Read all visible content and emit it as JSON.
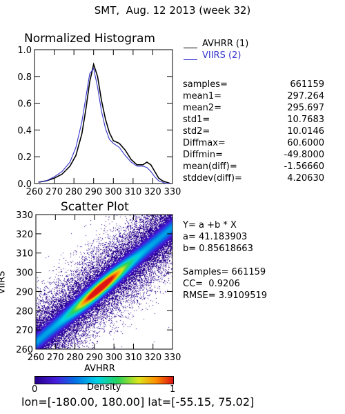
{
  "page_title": "SMT,  Aug. 12 2013 (week 32)",
  "colors": {
    "avhrr": "#000000",
    "viirs": "#3333cc"
  },
  "chart_data": [
    {
      "type": "line",
      "title": "Normalized Histogram",
      "xlabel": "",
      "ylabel": "",
      "xlim": [
        260,
        330
      ],
      "ylim": [
        0.0,
        1.0
      ],
      "xticks": [
        "260",
        "270",
        "280",
        "290",
        "300",
        "310",
        "320",
        "330"
      ],
      "yticks": [
        "0.0",
        "0.2",
        "0.4",
        "0.6",
        "0.8",
        "1.0"
      ],
      "legend": {
        "position": "right",
        "entries": [
          "AVHRR (1)",
          "VIIRS (2)"
        ]
      },
      "series": [
        {
          "name": "AVHRR (1)",
          "color": "#000000",
          "x": [
            262,
            266,
            270,
            274,
            278,
            281,
            284,
            286,
            288,
            290,
            292,
            294,
            296,
            298,
            300,
            303,
            306,
            309,
            312,
            315,
            317,
            319,
            321,
            323,
            325,
            327,
            329
          ],
          "y": [
            0.01,
            0.02,
            0.04,
            0.07,
            0.13,
            0.21,
            0.37,
            0.55,
            0.76,
            0.89,
            0.8,
            0.62,
            0.48,
            0.38,
            0.32,
            0.3,
            0.25,
            0.18,
            0.14,
            0.14,
            0.16,
            0.14,
            0.09,
            0.04,
            0.02,
            0.01,
            0.0
          ]
        },
        {
          "name": "VIIRS (2)",
          "color": "#3333cc",
          "x": [
            262,
            266,
            270,
            274,
            278,
            281,
            284,
            286,
            288,
            290,
            292,
            294,
            296,
            298,
            300,
            303,
            306,
            309,
            312,
            315,
            317,
            319,
            321,
            323,
            325,
            327,
            329
          ],
          "y": [
            0.01,
            0.02,
            0.05,
            0.09,
            0.16,
            0.27,
            0.46,
            0.64,
            0.82,
            0.86,
            0.72,
            0.54,
            0.41,
            0.33,
            0.3,
            0.27,
            0.21,
            0.16,
            0.13,
            0.13,
            0.12,
            0.09,
            0.05,
            0.02,
            0.01,
            0.0,
            0.0
          ]
        }
      ],
      "stats": [
        {
          "label": "samples=",
          "value": "661159"
        },
        {
          "label": "mean1=",
          "value": "297.264"
        },
        {
          "label": "mean2=",
          "value": "295.697"
        },
        {
          "label": "std1=",
          "value": "10.7683"
        },
        {
          "label": "std2=",
          "value": "10.0146"
        },
        {
          "label": "Diffmax=",
          "value": "60.6000"
        },
        {
          "label": "Diffmin=",
          "value": "-49.8000"
        },
        {
          "label": "mean(diff)=",
          "value": "-1.56660"
        },
        {
          "label": "stddev(diff)=",
          "value": "4.20630"
        }
      ]
    },
    {
      "type": "scatter",
      "title": "Scatter Plot",
      "xlabel": "AVHRR",
      "ylabel": "VIIRS",
      "xlim": [
        260,
        330
      ],
      "ylim": [
        260,
        330
      ],
      "xticks": [
        "260",
        "270",
        "280",
        "290",
        "300",
        "310",
        "320",
        "330"
      ],
      "yticks": [
        "260",
        "270",
        "280",
        "290",
        "300",
        "310",
        "320",
        "330"
      ],
      "regression": {
        "a": 41.183903,
        "b": 0.85618663
      },
      "fit_text": [
        "Y= a +b * X",
        "a= 41.183903",
        "b= 0.85618663",
        "",
        "Samples= 661159",
        "CC=  0.9206",
        "RMSE= 3.9109519"
      ],
      "colorbar": {
        "label": "Density",
        "min": "0",
        "max": "1"
      }
    }
  ],
  "footer": "lon=[-180.00, 180.00] lat=[-55.15, 75.02]"
}
